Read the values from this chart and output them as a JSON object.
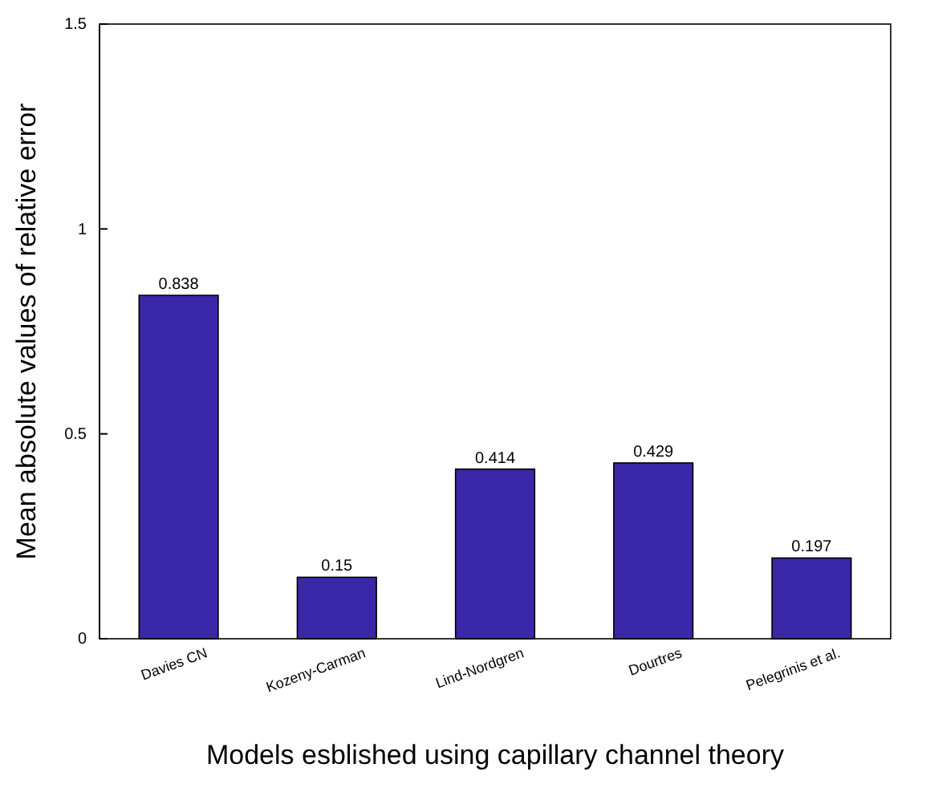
{
  "chart_data": {
    "type": "bar",
    "xlabel": "Models esblished using capillary channel theory",
    "ylabel": "Mean absolute values of relative error",
    "categories": [
      "Davies CN",
      "Kozeny-Carman",
      "Lind-Nordgren",
      "Dourtres",
      "Pelegrinis et al."
    ],
    "values": [
      0.838,
      0.15,
      0.414,
      0.429,
      0.197
    ],
    "color": "#3a27a8",
    "ylim": [
      0,
      1.5
    ],
    "yticks": [
      0,
      {
        "value": 0.5,
        "label": "0.5"
      },
      1,
      1.5
    ],
    "grid": false,
    "data_labels": true
  }
}
